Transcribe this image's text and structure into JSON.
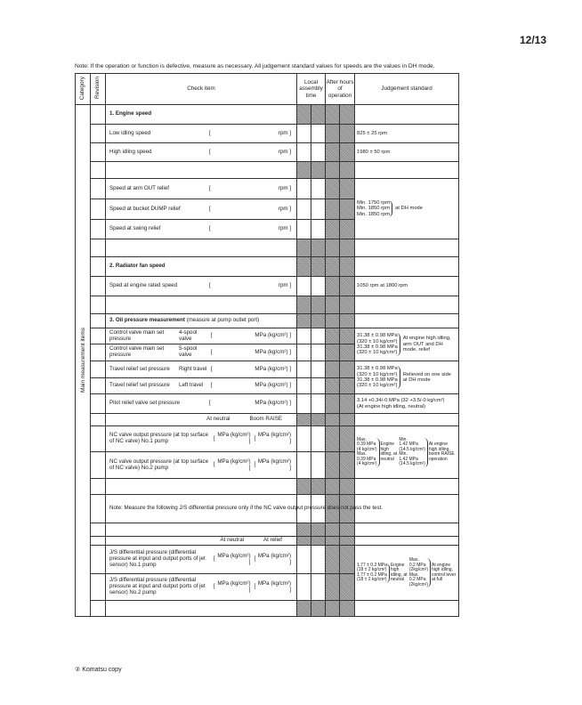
{
  "page_number": "12/13",
  "note": "Note: If the operation or function is defective, measure as necessary. All judgement standard values for speeds are the values in DH mode.",
  "header": {
    "category": "Category",
    "revision": "Revision",
    "check_item": "Check item",
    "local_assembly": "Local assembly time",
    "after_hours": "After hours of operation",
    "judgement": "Judgement standard"
  },
  "category_label": "Main measurement items",
  "rows": [
    {
      "kind": "section",
      "label": "1. Engine speed"
    },
    {
      "kind": "item",
      "label": "Low idling speed",
      "units": [
        "rpm"
      ],
      "judgement": [
        [
          "825 ± 25 rpm"
        ]
      ]
    },
    {
      "kind": "item",
      "label": "High idling speed",
      "units": [
        "rpm"
      ],
      "judgement": [
        [
          "1980 ± 50 rpm"
        ]
      ]
    },
    {
      "kind": "blank"
    },
    {
      "kind": "item",
      "label": "Speed at arm OUT relief",
      "units": [
        "rpm"
      ],
      "judgement": [
        [
          "Min. 1750 rpm",
          "Min. 1850 rpm",
          "Min. 1850 rpm"
        ],
        [
          "at DH mode"
        ]
      ]
    },
    {
      "kind": "item",
      "label": "Speed at bucket DUMP relief",
      "units": [
        "rpm"
      ]
    },
    {
      "kind": "item",
      "label": "Speed at swing relief",
      "units": [
        "rpm"
      ]
    },
    {
      "kind": "blank"
    },
    {
      "kind": "section",
      "label": "2. Radiator fan speed"
    },
    {
      "kind": "item",
      "label": "Sped at engine rated speed",
      "units": [
        "rpm"
      ],
      "judgement": [
        [
          "1050 rpm at 1800 rpm"
        ]
      ]
    },
    {
      "kind": "blank"
    },
    {
      "kind": "section",
      "label": "3. Oil pressure measurement",
      "label_extra": "(measure at pump outlet port)"
    },
    {
      "kind": "item",
      "label": "Control valve main set pressure",
      "sub": "4-spool valve",
      "units": [
        "MPa (kg/cm²)"
      ],
      "judgement": [
        [
          "31.38 ± 0.98 MPa",
          "(320 ± 10 kg/cm²)",
          "31.38 ± 0.98 MPa",
          "(320 ± 10 kg/cm²)"
        ],
        [
          "At engine high idling, arm OUT and DH mode, relief"
        ]
      ]
    },
    {
      "kind": "item",
      "label": "Control valve main set pressure",
      "sub": "5-spool valve",
      "units": [
        "MPa (kg/cm²)"
      ]
    },
    {
      "kind": "item",
      "label": "Travel relief set pressure",
      "sub": "Right travel",
      "units": [
        "MPa (kg/cm²)"
      ],
      "judgement": [
        [
          "31.38 ± 0.98 MPa",
          "(320 ± 10 kg/cm²)",
          "31.38 ± 0.98 MPa",
          "(320 ± 10 kg/cm²)"
        ],
        [
          "Relieved on one side at DH mode"
        ]
      ]
    },
    {
      "kind": "item",
      "label": "Travel relief set pressure",
      "sub": "Left travel",
      "units": [
        "MPa (kg/cm²)"
      ]
    },
    {
      "kind": "item",
      "label": "Pilot relief valve set pressure",
      "units": [
        "MPa (kg/cm²)"
      ],
      "judgement": [
        [
          "3.14 +0.34/-0 MPa (32 +3.5/-0 kg/cm²)",
          "(At engine high idling, neutral)"
        ]
      ]
    },
    {
      "kind": "heads",
      "heads": [
        "At neutral",
        "Boom RAISE"
      ]
    },
    {
      "kind": "item",
      "label": "NC valve output pressure (at top surface of NC valve) No.1 pump",
      "units": [
        "MPa (kg/cm²)",
        "MPa (kg/cm²)"
      ],
      "judgement": [
        [
          "Max.",
          "0.39 MPa",
          "(4 kg/cm²)",
          "Max.",
          "0.39 MPa",
          "(4 kg/cm²)"
        ],
        [
          "Engine high idling, at neutral"
        ],
        [
          "Min.",
          "1.42 MPa",
          "(14.5 kg/cm²)",
          "Min.",
          "1.42 MPa",
          "(14.5 kg/cm²)"
        ],
        [
          "At engine high idling, boom RAISE operation"
        ]
      ]
    },
    {
      "kind": "item",
      "label": "NC valve output pressure (at top surface of NC valve) No.2 pump",
      "units": [
        "MPa (kg/cm²)",
        "MPa (kg/cm²)"
      ]
    },
    {
      "kind": "blank"
    },
    {
      "kind": "item",
      "label": "Note: Measure the following J/S differential pressure only if the NC valve output pressure does not pass the test.",
      "units": []
    },
    {
      "kind": "blank"
    },
    {
      "kind": "heads",
      "heads": [
        "At neutral",
        "At relief"
      ]
    },
    {
      "kind": "item",
      "label": "J/S differential pressure (differential pressure at input and output ports of jet sensor) No.1 pump",
      "units": [
        "MPa (kg/cm²)",
        "MPa (kg/cm²)"
      ],
      "judgement": [
        [
          "1.77 ± 0.2 MPa",
          "(18 ± 2 kg/cm²)",
          "1.77 ± 0.2 MPa",
          "(18 ± 2 kg/cm²)"
        ],
        [
          "Engine high idling, at neutral"
        ],
        [
          "Max.",
          "0.2 MPa",
          "(2kg/cm²)",
          "Max.",
          "0.2 MPa",
          "(2kg/cm²)"
        ],
        [
          "At engine high idling, control lever at full"
        ]
      ]
    },
    {
      "kind": "item",
      "label": "J/S differential pressure (differential pressure at input and output ports of jet sensor) No.2 pump",
      "units": [
        "MPa (kg/cm²)",
        "MPa (kg/cm²)"
      ]
    },
    {
      "kind": "blank"
    }
  ],
  "footer": "② Komatsu copy"
}
